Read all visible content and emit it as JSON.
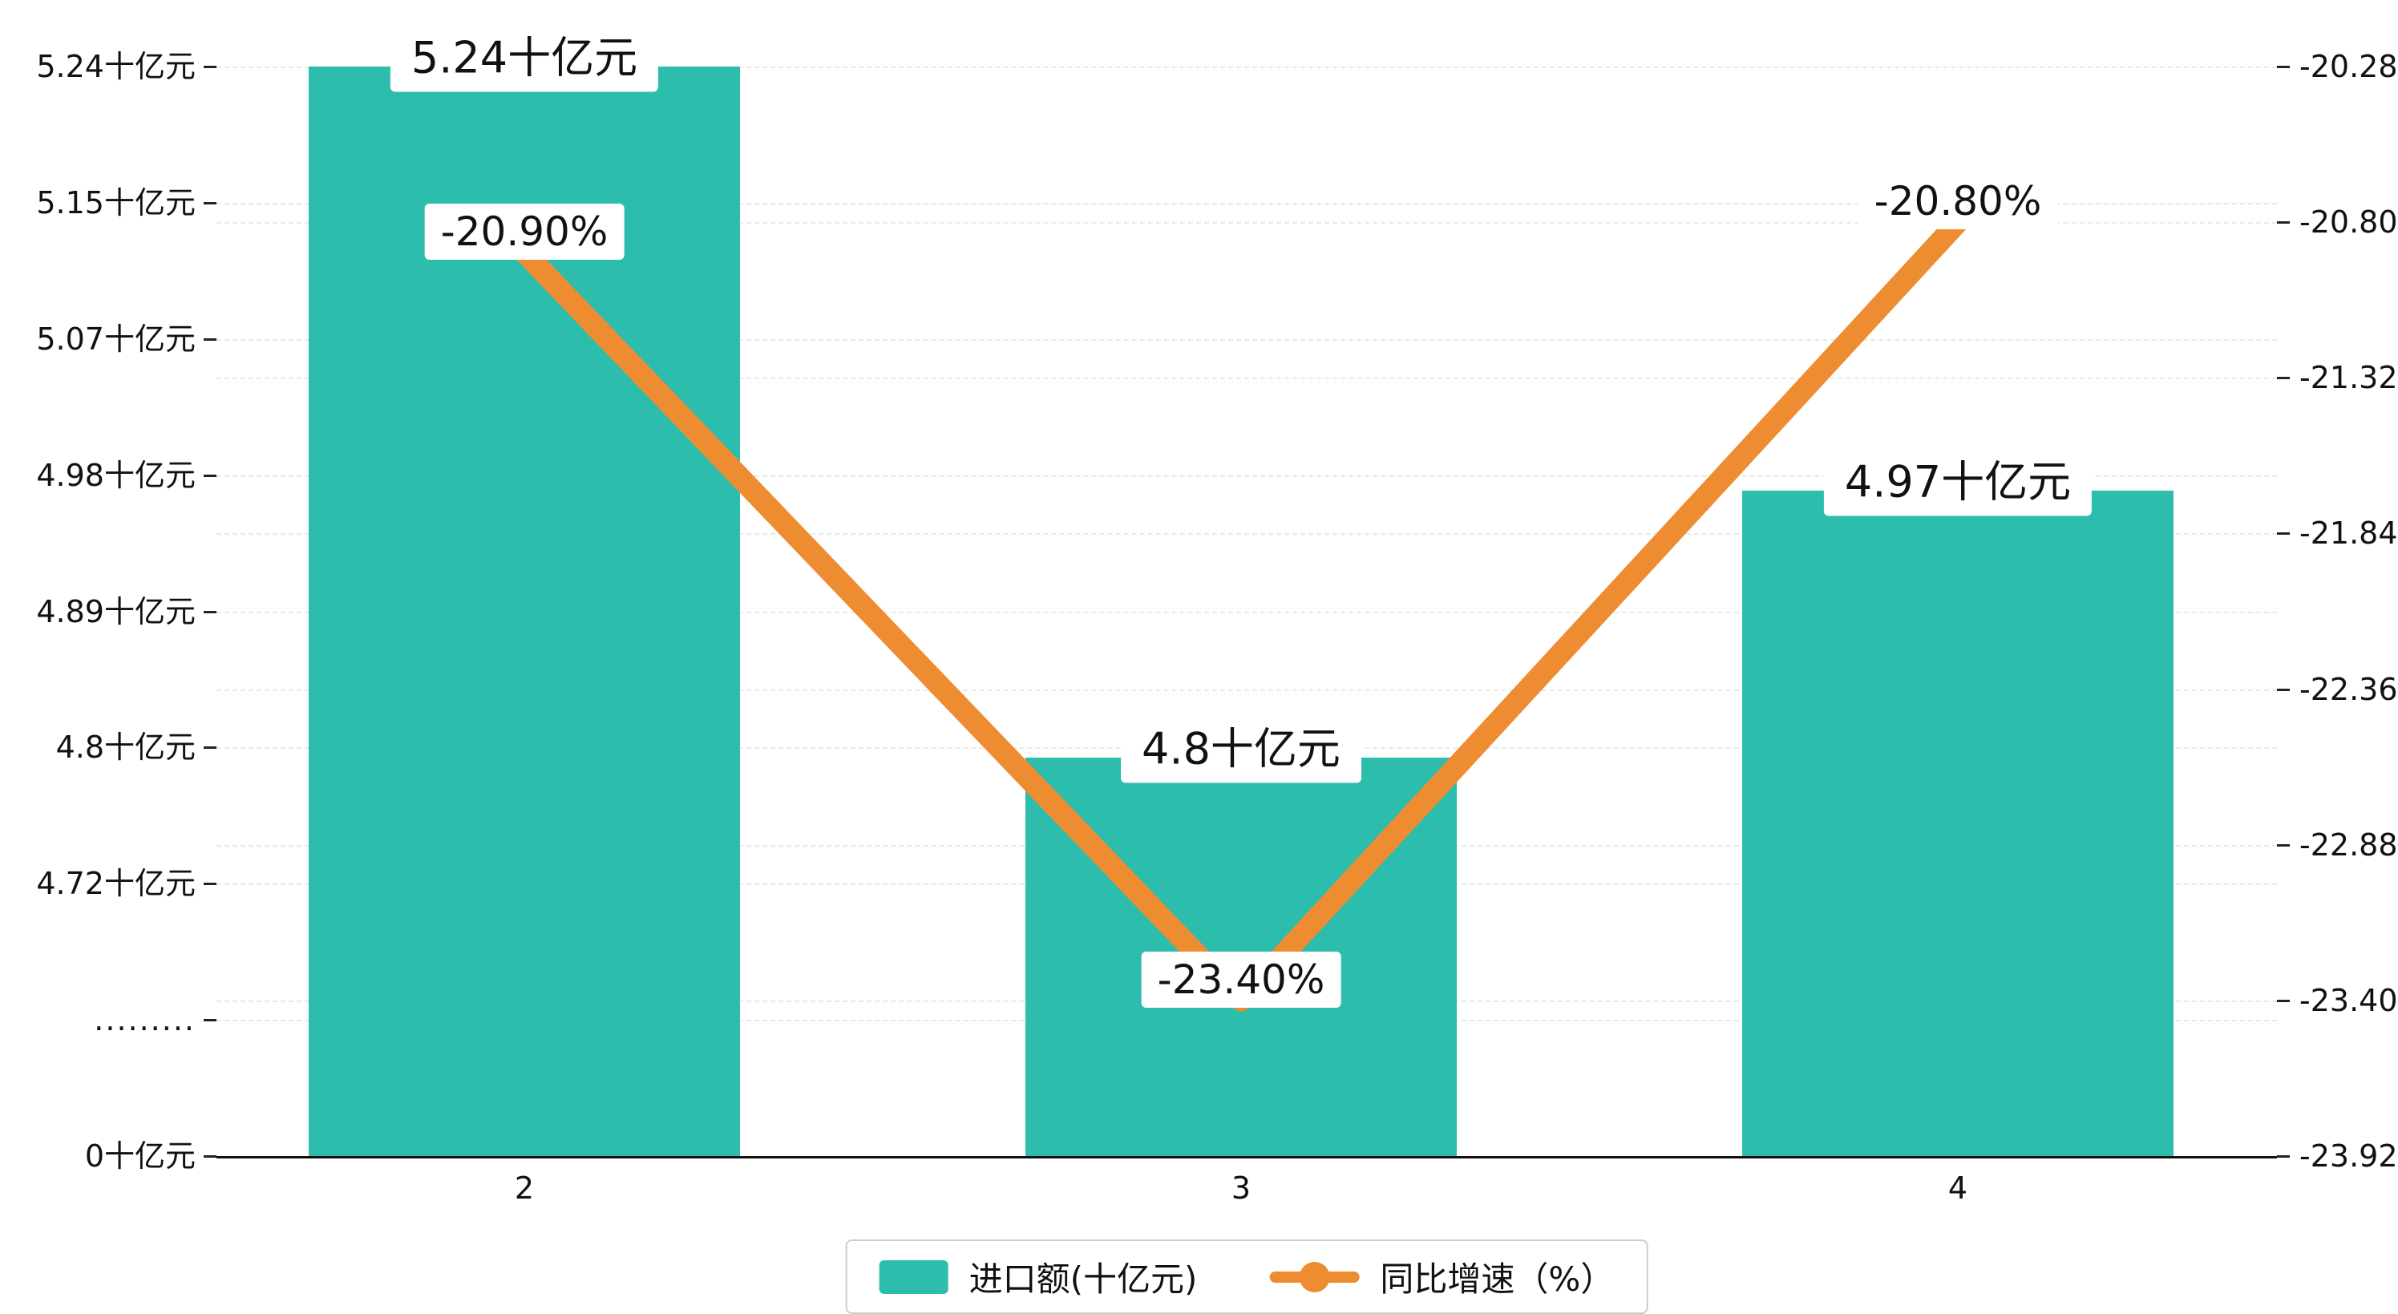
{
  "chart_data": {
    "type": "bar",
    "combo": "bar+line",
    "categories": [
      "2",
      "3",
      "4"
    ],
    "series": [
      {
        "name": "进口额(十亿元)",
        "type": "bar",
        "axis": "left",
        "values": [
          5.24,
          4.8,
          4.97
        ],
        "labels": [
          "5.24十亿元",
          "4.8十亿元",
          "4.97十亿元"
        ],
        "color": "#2dbdad"
      },
      {
        "name": "同比增速（%）",
        "type": "line",
        "axis": "right",
        "values": [
          -20.9,
          -23.4,
          -20.8
        ],
        "labels": [
          "-20.90%",
          "-23.40%",
          "-20.80%"
        ],
        "color": "#ee8c31"
      }
    ],
    "left_axis": {
      "unit": "十亿元",
      "tick_labels": [
        "5.24十亿元",
        "5.15十亿元",
        "5.07十亿元",
        "4.98十亿元",
        "4.89十亿元",
        "4.8十亿元",
        "4.72十亿元",
        ".........",
        "0十亿元"
      ],
      "top_value": 5.24,
      "break_lower_value": 4.72,
      "has_break": true,
      "min_label": "0十亿元"
    },
    "right_axis": {
      "tick_labels": [
        "-20.28",
        "-20.80",
        "-21.32",
        "-21.84",
        "-22.36",
        "-22.88",
        "-23.40",
        "-23.92"
      ],
      "max": -20.28,
      "min": -23.92
    },
    "legend": [
      {
        "label": "进口额(十亿元)",
        "marker": "bar"
      },
      {
        "label": "同比增速（%）",
        "marker": "line"
      }
    ],
    "grid": "horizontal-dashed",
    "legend_position": "bottom"
  },
  "colors": {
    "bar": "#2dbdad",
    "line": "#ee8c31",
    "grid": "#e9e9e9",
    "axis": "#111111",
    "label_bg": "#ffffff",
    "legend_border": "#cccccc"
  }
}
